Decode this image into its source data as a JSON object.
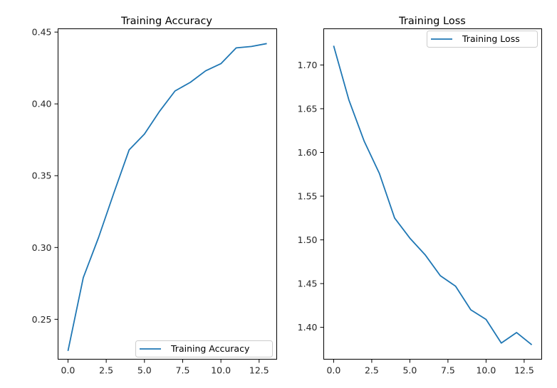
{
  "chart_data": [
    {
      "type": "line",
      "title": "Training Accuracy",
      "xlabel": "",
      "ylabel": "",
      "x": [
        0,
        1,
        2,
        3,
        4,
        5,
        6,
        7,
        8,
        9,
        10,
        11,
        12,
        13
      ],
      "series": [
        {
          "name": "Training Accuracy",
          "color": "#1f77b4",
          "values": [
            0.228,
            0.279,
            0.307,
            0.338,
            0.368,
            0.379,
            0.395,
            0.409,
            0.415,
            0.423,
            0.428,
            0.439,
            0.44,
            0.442
          ]
        }
      ],
      "xlim": [
        -0.65,
        13.65
      ],
      "ylim": [
        0.2222,
        0.4523
      ],
      "xticks": [
        0.0,
        2.5,
        5.0,
        7.5,
        10.0,
        12.5
      ],
      "xtick_labels": [
        "0.0",
        "2.5",
        "5.0",
        "7.5",
        "10.0",
        "12.5"
      ],
      "yticks": [
        0.25,
        0.3,
        0.35,
        0.4,
        0.45
      ],
      "ytick_labels": [
        "0.25",
        "0.30",
        "0.35",
        "0.40",
        "0.45"
      ],
      "legend_position": "lower-right",
      "grid": false
    },
    {
      "type": "line",
      "title": "Training Loss",
      "xlabel": "",
      "ylabel": "",
      "x": [
        0,
        1,
        2,
        3,
        4,
        5,
        6,
        7,
        8,
        9,
        10,
        11,
        12,
        13
      ],
      "series": [
        {
          "name": "Training Loss",
          "color": "#1f77b4",
          "values": [
            1.722,
            1.66,
            1.613,
            1.576,
            1.525,
            1.502,
            1.483,
            1.459,
            1.447,
            1.42,
            1.409,
            1.382,
            1.394,
            1.38
          ]
        }
      ],
      "xlim": [
        -0.65,
        13.65
      ],
      "ylim": [
        1.3635,
        1.7414
      ],
      "xticks": [
        0.0,
        2.5,
        5.0,
        7.5,
        10.0,
        12.5
      ],
      "xtick_labels": [
        "0.0",
        "2.5",
        "5.0",
        "7.5",
        "10.0",
        "12.5"
      ],
      "yticks": [
        1.4,
        1.45,
        1.5,
        1.55,
        1.6,
        1.65,
        1.7
      ],
      "ytick_labels": [
        "1.40",
        "1.45",
        "1.50",
        "1.55",
        "1.60",
        "1.65",
        "1.70"
      ],
      "legend_position": "upper-right",
      "grid": false
    }
  ]
}
